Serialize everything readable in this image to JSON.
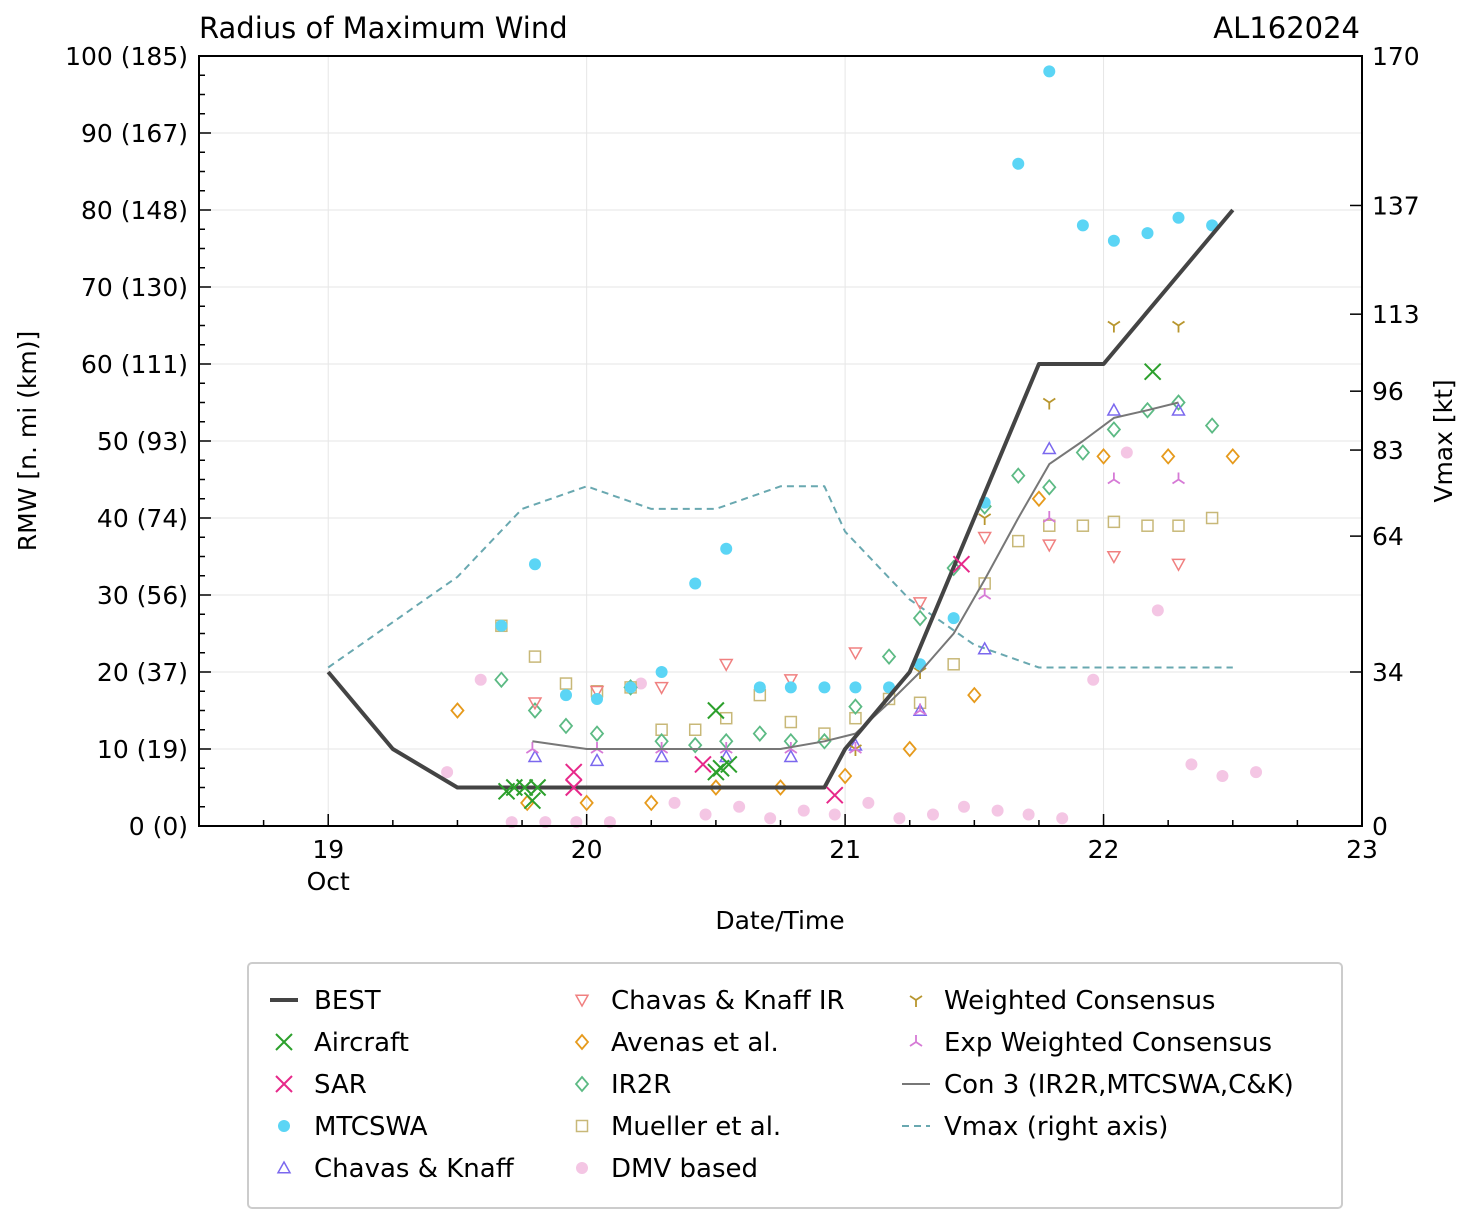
{
  "chart_data": {
    "type": "scatter",
    "title": "Radius of Maximum Wind",
    "storm_id": "AL162024",
    "xlabel": "Date/Time",
    "ylabel": "RMW [n. mi (km)]",
    "ylabel_right": "Vmax [kt]",
    "xlim": [
      18.5,
      23.0
    ],
    "ylim": [
      0,
      100
    ],
    "x_ticks": [
      {
        "value": 19,
        "label": "19"
      },
      {
        "value": 20,
        "label": "20"
      },
      {
        "value": 21,
        "label": "21"
      },
      {
        "value": 22,
        "label": "22"
      },
      {
        "value": 23,
        "label": "23"
      }
    ],
    "x_month_label": {
      "value": 19,
      "label": "Oct"
    },
    "y_ticks": [
      {
        "value": 0,
        "label": "0 (0)"
      },
      {
        "value": 10,
        "label": "10 (19)"
      },
      {
        "value": 20,
        "label": "20 (37)"
      },
      {
        "value": 30,
        "label": "30 (56)"
      },
      {
        "value": 40,
        "label": "40 (74)"
      },
      {
        "value": 50,
        "label": "50 (93)"
      },
      {
        "value": 60,
        "label": "60 (111)"
      },
      {
        "value": 70,
        "label": "70 (130)"
      },
      {
        "value": 80,
        "label": "80 (148)"
      },
      {
        "value": 90,
        "label": "90 (167)"
      },
      {
        "value": 100,
        "label": "100 (185)"
      }
    ],
    "right_ticks": [
      {
        "value": 0,
        "label": "0"
      },
      {
        "value": 34,
        "label": "34"
      },
      {
        "value": 64,
        "label": "64"
      },
      {
        "value": 83,
        "label": "83"
      },
      {
        "value": 96,
        "label": "96"
      },
      {
        "value": 113,
        "label": "113"
      },
      {
        "value": 137,
        "label": "137"
      },
      {
        "value": 170,
        "label": "170"
      }
    ],
    "right_ylim": [
      0,
      170
    ],
    "series": [
      {
        "name": "BEST",
        "marker": "line",
        "color": "#444444",
        "points": [
          [
            19.0,
            20
          ],
          [
            19.25,
            10
          ],
          [
            19.5,
            5
          ],
          [
            19.75,
            5
          ],
          [
            20.0,
            5
          ],
          [
            20.25,
            5
          ],
          [
            20.5,
            5
          ],
          [
            20.75,
            5
          ],
          [
            20.92,
            5
          ],
          [
            21.0,
            10
          ],
          [
            21.25,
            20
          ],
          [
            21.5,
            40
          ],
          [
            21.75,
            60
          ],
          [
            22.0,
            60
          ],
          [
            22.25,
            70
          ],
          [
            22.5,
            80
          ]
        ]
      },
      {
        "name": "Aircraft",
        "marker": "x",
        "color": "#2ca02c",
        "points": [
          [
            19.69,
            4.5
          ],
          [
            19.72,
            5
          ],
          [
            19.76,
            5
          ],
          [
            19.79,
            3.3
          ],
          [
            19.81,
            5
          ],
          [
            20.5,
            15
          ],
          [
            20.5,
            7
          ],
          [
            20.52,
            7.5
          ],
          [
            20.55,
            8
          ],
          [
            22.19,
            59
          ]
        ]
      },
      {
        "name": "SAR",
        "marker": "x",
        "color": "#e7298a",
        "points": [
          [
            19.95,
            7
          ],
          [
            19.95,
            5
          ],
          [
            20.45,
            8
          ],
          [
            20.96,
            4
          ],
          [
            21.45,
            34
          ]
        ]
      },
      {
        "name": "MTCSWA",
        "marker": "dot",
        "color": "#5bd5f5",
        "points": [
          [
            19.67,
            26
          ],
          [
            19.8,
            34
          ],
          [
            19.92,
            17
          ],
          [
            20.04,
            16.5
          ],
          [
            20.17,
            18
          ],
          [
            20.29,
            20
          ],
          [
            20.42,
            31.5
          ],
          [
            20.54,
            36
          ],
          [
            20.67,
            18
          ],
          [
            20.79,
            18
          ],
          [
            20.92,
            18
          ],
          [
            21.04,
            18
          ],
          [
            21.17,
            18
          ],
          [
            21.29,
            21
          ],
          [
            21.42,
            27
          ],
          [
            21.54,
            42
          ],
          [
            21.67,
            86
          ],
          [
            21.79,
            98
          ],
          [
            21.92,
            78
          ],
          [
            22.04,
            76
          ],
          [
            22.17,
            77
          ],
          [
            22.29,
            79
          ],
          [
            22.42,
            78
          ]
        ]
      },
      {
        "name": "Chavas & Knaff",
        "marker": "tri_up",
        "color": "#7b68ee",
        "points": [
          [
            19.8,
            9
          ],
          [
            20.04,
            8.5
          ],
          [
            20.29,
            9
          ],
          [
            20.54,
            9
          ],
          [
            20.79,
            9
          ],
          [
            21.04,
            10.5
          ],
          [
            21.29,
            15
          ],
          [
            21.54,
            23
          ],
          [
            21.79,
            49
          ],
          [
            22.04,
            54
          ],
          [
            22.29,
            54
          ]
        ]
      },
      {
        "name": "Chavas & Knaff IR",
        "marker": "tri_down",
        "color": "#f08080",
        "points": [
          [
            19.8,
            16
          ],
          [
            20.04,
            17.5
          ],
          [
            20.29,
            18
          ],
          [
            20.54,
            21
          ],
          [
            20.79,
            19
          ],
          [
            21.04,
            22.5
          ],
          [
            21.29,
            29
          ],
          [
            21.54,
            37.5
          ],
          [
            21.79,
            36.5
          ],
          [
            22.04,
            35
          ],
          [
            22.29,
            34
          ]
        ]
      },
      {
        "name": "Avenas et al.",
        "marker": "diamond",
        "color": "#e69a1c",
        "points": [
          [
            19.5,
            15
          ],
          [
            19.77,
            3
          ],
          [
            20.0,
            3
          ],
          [
            20.25,
            3
          ],
          [
            20.5,
            5
          ],
          [
            20.75,
            5
          ],
          [
            21.0,
            6.5
          ],
          [
            21.25,
            10
          ],
          [
            21.5,
            17
          ],
          [
            21.75,
            42.5
          ],
          [
            22.0,
            48
          ],
          [
            22.25,
            48
          ],
          [
            22.5,
            48
          ]
        ]
      },
      {
        "name": "IR2R",
        "marker": "diamond",
        "color": "#5cba84",
        "points": [
          [
            19.67,
            19
          ],
          [
            19.8,
            15
          ],
          [
            19.92,
            13
          ],
          [
            20.04,
            12
          ],
          [
            20.17,
            18
          ],
          [
            20.29,
            11
          ],
          [
            20.42,
            10.5
          ],
          [
            20.54,
            11
          ],
          [
            20.67,
            12
          ],
          [
            20.79,
            11
          ],
          [
            20.92,
            11
          ],
          [
            21.04,
            15.5
          ],
          [
            21.17,
            22
          ],
          [
            21.29,
            27
          ],
          [
            21.42,
            33.5
          ],
          [
            21.54,
            41.5
          ],
          [
            21.67,
            45.5
          ],
          [
            21.79,
            44
          ],
          [
            21.92,
            48.5
          ],
          [
            22.04,
            51.5
          ],
          [
            22.17,
            54
          ],
          [
            22.29,
            55
          ],
          [
            22.42,
            52
          ]
        ]
      },
      {
        "name": "Mueller et al.",
        "marker": "square",
        "color": "#c8b878",
        "points": [
          [
            19.67,
            26
          ],
          [
            19.8,
            22
          ],
          [
            19.92,
            18.5
          ],
          [
            20.04,
            17.5
          ],
          [
            20.17,
            18
          ],
          [
            20.29,
            12.5
          ],
          [
            20.42,
            12.5
          ],
          [
            20.54,
            14
          ],
          [
            20.67,
            17
          ],
          [
            20.79,
            13.5
          ],
          [
            20.92,
            12
          ],
          [
            21.04,
            14
          ],
          [
            21.17,
            16.5
          ],
          [
            21.29,
            16
          ],
          [
            21.42,
            21
          ],
          [
            21.54,
            31.5
          ],
          [
            21.67,
            37
          ],
          [
            21.79,
            39
          ],
          [
            21.92,
            39
          ],
          [
            22.04,
            39.5
          ],
          [
            22.17,
            39
          ],
          [
            22.29,
            39
          ],
          [
            22.42,
            40
          ]
        ]
      },
      {
        "name": "DMV based",
        "marker": "dot",
        "color": "#f4c6e4",
        "points": [
          [
            19.46,
            7
          ],
          [
            19.59,
            19
          ],
          [
            19.71,
            0.5
          ],
          [
            19.84,
            0.5
          ],
          [
            19.96,
            0.5
          ],
          [
            20.09,
            0.5
          ],
          [
            20.21,
            18.5
          ],
          [
            20.34,
            3
          ],
          [
            20.46,
            1.5
          ],
          [
            20.59,
            2.5
          ],
          [
            20.71,
            1
          ],
          [
            20.84,
            2
          ],
          [
            20.96,
            1.5
          ],
          [
            21.09,
            3
          ],
          [
            21.21,
            1
          ],
          [
            21.34,
            1.5
          ],
          [
            21.46,
            2.5
          ],
          [
            21.59,
            2
          ],
          [
            21.71,
            1.5
          ],
          [
            21.84,
            1
          ],
          [
            21.96,
            19
          ],
          [
            22.09,
            48.5
          ],
          [
            22.21,
            28
          ],
          [
            22.34,
            8
          ],
          [
            22.46,
            6.5
          ],
          [
            22.59,
            7
          ]
        ]
      },
      {
        "name": "Weighted Consensus",
        "marker": "y_down",
        "color": "#b8962e",
        "points": [
          [
            21.04,
            10
          ],
          [
            21.29,
            20
          ],
          [
            21.54,
            40
          ],
          [
            21.79,
            55
          ],
          [
            22.04,
            65
          ],
          [
            22.29,
            65
          ]
        ]
      },
      {
        "name": "Exp Weighted Consensus",
        "marker": "y_up",
        "color": "#d67ad6",
        "points": [
          [
            19.79,
            10
          ],
          [
            20.04,
            10
          ],
          [
            20.29,
            10
          ],
          [
            20.54,
            10
          ],
          [
            20.79,
            10
          ],
          [
            21.04,
            10
          ],
          [
            21.29,
            15
          ],
          [
            21.54,
            30
          ],
          [
            21.79,
            40
          ],
          [
            22.04,
            45
          ],
          [
            22.29,
            45
          ]
        ]
      },
      {
        "name": "Con 3 (IR2R,MTCSWA,C&K)",
        "marker": "line",
        "color": "#777777",
        "points": [
          [
            19.79,
            11
          ],
          [
            20.0,
            10
          ],
          [
            20.25,
            10
          ],
          [
            20.5,
            10
          ],
          [
            20.75,
            10
          ],
          [
            20.92,
            11
          ],
          [
            21.04,
            12
          ],
          [
            21.17,
            16
          ],
          [
            21.29,
            20
          ],
          [
            21.42,
            25
          ],
          [
            21.54,
            32
          ],
          [
            21.67,
            40
          ],
          [
            21.79,
            47
          ],
          [
            21.92,
            50
          ],
          [
            22.04,
            53
          ],
          [
            22.17,
            54
          ],
          [
            22.29,
            55
          ]
        ]
      },
      {
        "name": "Vmax (right axis)",
        "marker": "dashed",
        "color": "#69a8b0",
        "axis": "right",
        "points": [
          [
            19.0,
            35
          ],
          [
            19.25,
            45
          ],
          [
            19.5,
            55
          ],
          [
            19.75,
            70
          ],
          [
            20.0,
            75
          ],
          [
            20.25,
            70
          ],
          [
            20.5,
            70
          ],
          [
            20.75,
            75
          ],
          [
            20.92,
            75
          ],
          [
            21.0,
            65
          ],
          [
            21.25,
            50
          ],
          [
            21.5,
            40
          ],
          [
            21.75,
            35
          ],
          [
            22.0,
            35
          ],
          [
            22.25,
            35
          ],
          [
            22.5,
            35
          ]
        ]
      }
    ],
    "legend": {
      "placement": "bottom",
      "columns": [
        [
          "BEST",
          "Aircraft",
          "SAR",
          "MTCSWA",
          "Chavas & Knaff"
        ],
        [
          "Chavas & Knaff IR",
          "Avenas et al.",
          "IR2R",
          "Mueller et al.",
          "DMV based"
        ],
        [
          "Weighted Consensus",
          "Exp Weighted Consensus",
          "Con 3 (IR2R,MTCSWA,C&K)",
          "Vmax (right axis)"
        ]
      ]
    },
    "grid": true
  }
}
